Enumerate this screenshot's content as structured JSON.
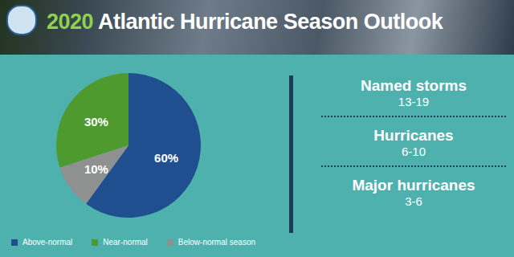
{
  "chart_data": {
    "type": "pie",
    "title": "2020 Atlantic Hurricane Season Outlook",
    "categories": [
      "Above-normal",
      "Near-normal",
      "Below-normal season"
    ],
    "values": [
      60,
      30,
      10
    ],
    "value_labels": [
      "60%",
      "30%",
      "10%"
    ],
    "colors": [
      "#1f4f8f",
      "#4e9a2f",
      "#8f9191"
    ],
    "data_labels": true,
    "legend": "bottom",
    "annotations": [
      {
        "label": "Named storms",
        "text": "13-19"
      },
      {
        "label": "Hurricanes",
        "text": "6-10"
      },
      {
        "label": "Major hurricanes",
        "text": "3-6"
      }
    ]
  }
}
